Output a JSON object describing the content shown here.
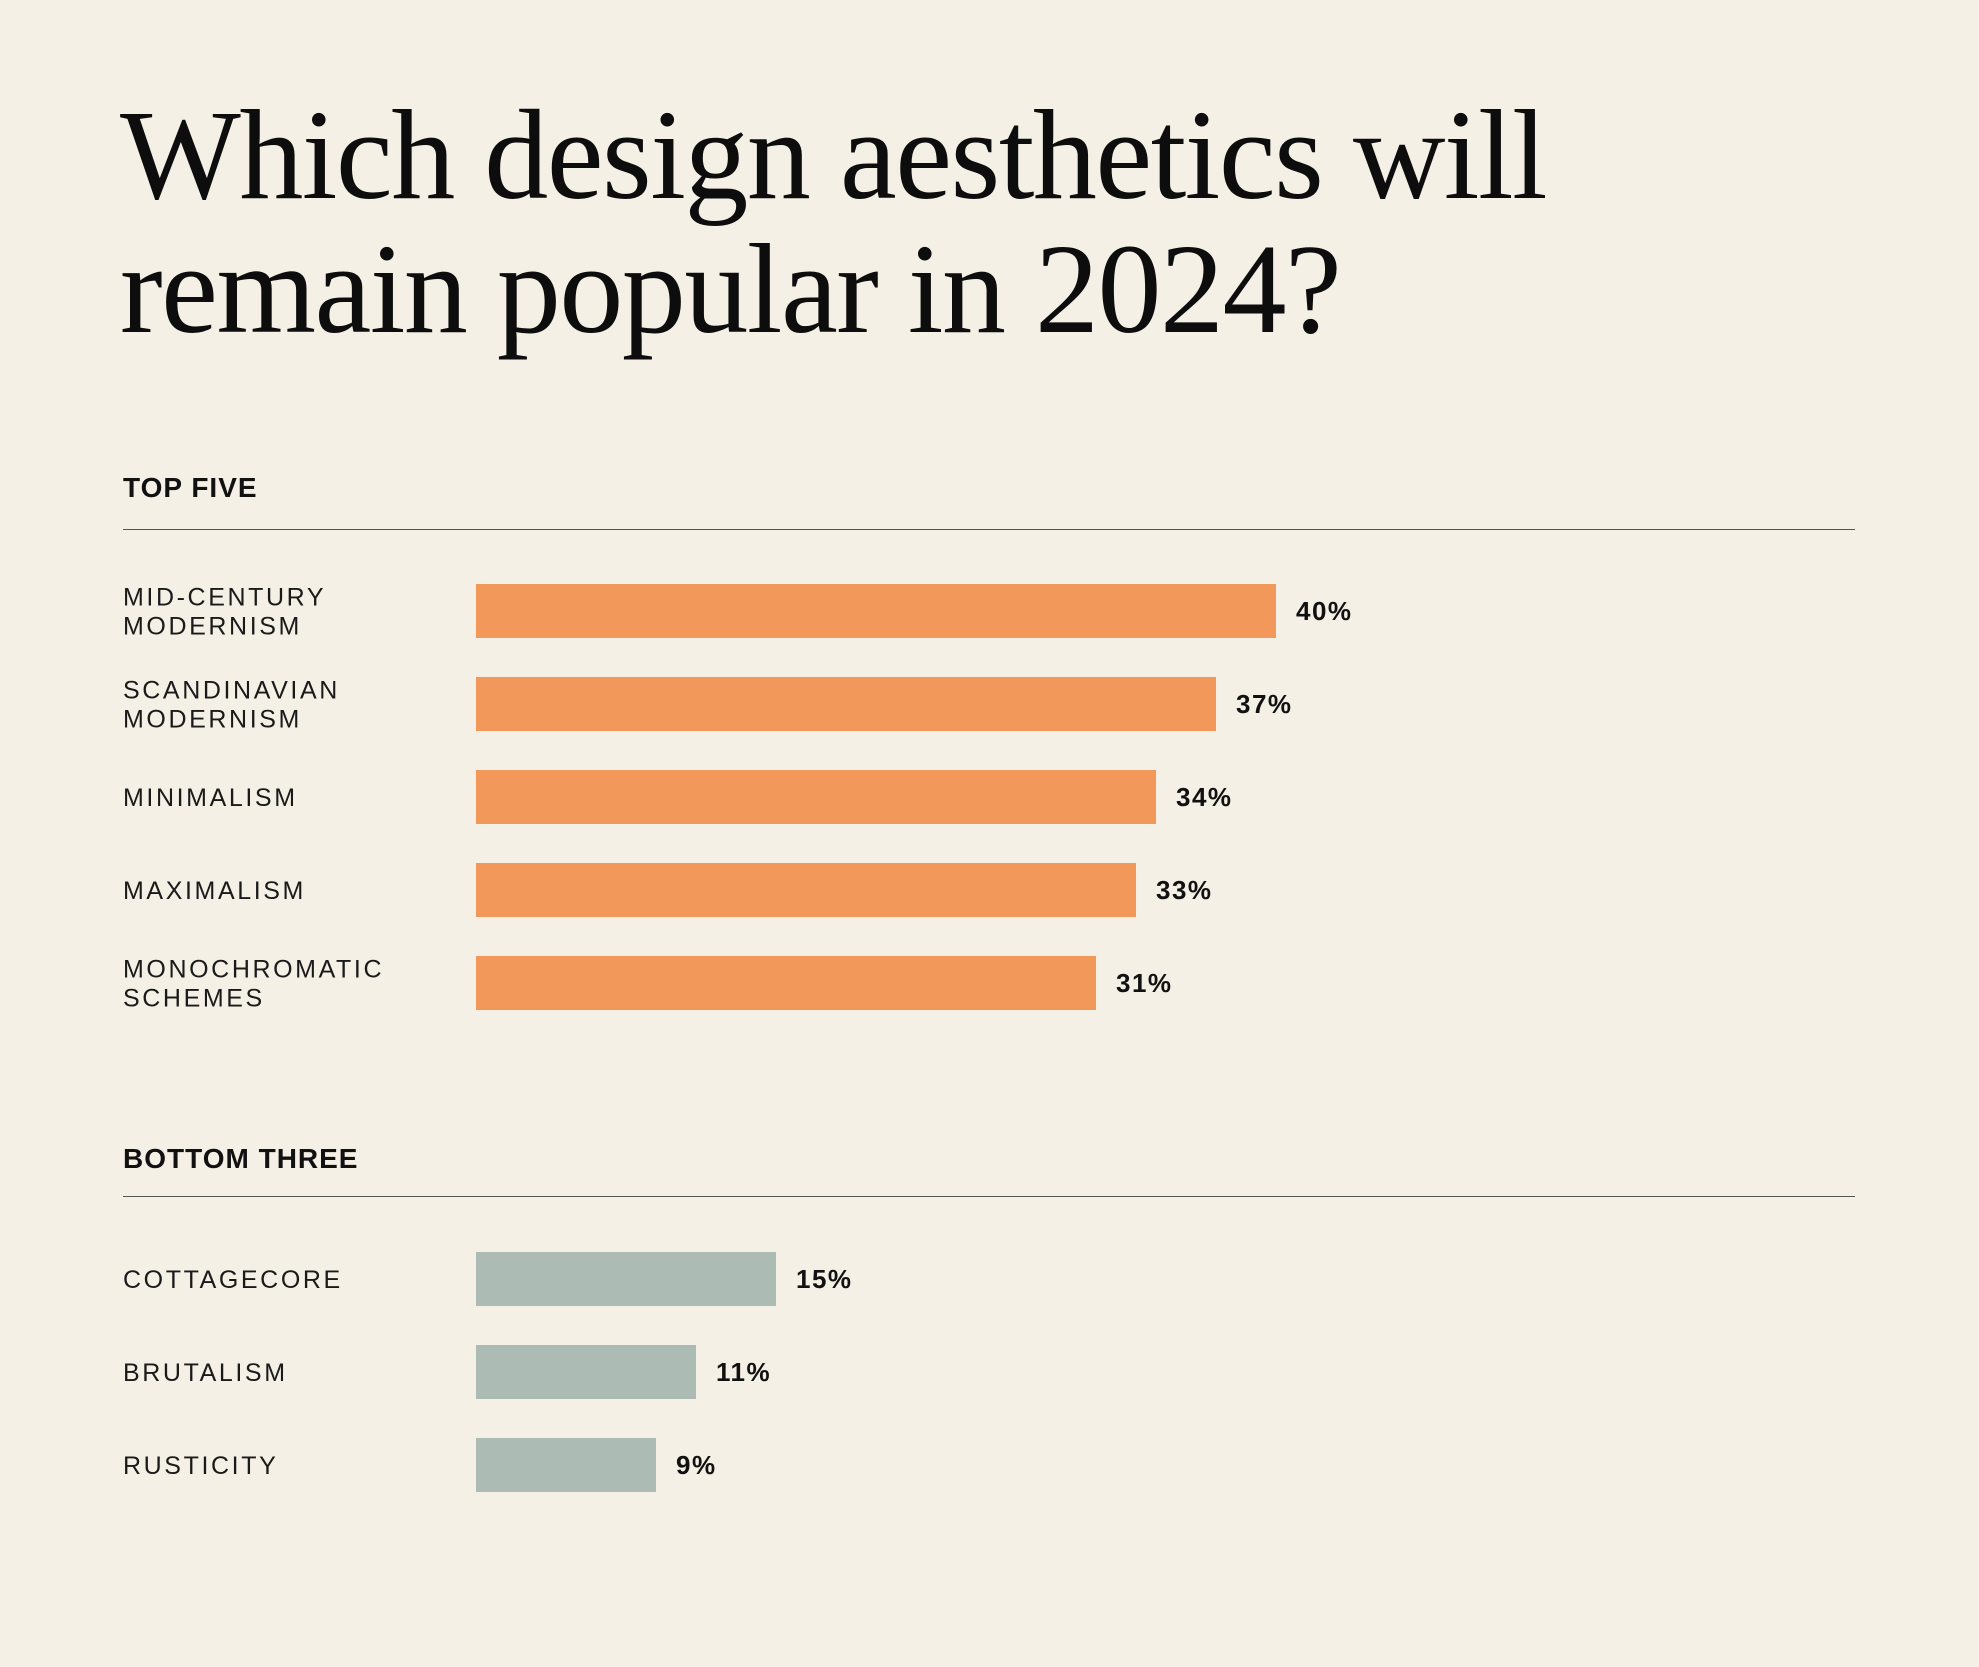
{
  "title": {
    "line1": "Which design aesthetics will",
    "line2": "remain popular in 2024?"
  },
  "chart_data": [
    {
      "type": "bar",
      "orientation": "horizontal",
      "section_label": "TOP FIVE",
      "categories": [
        [
          "MID-CENTURY",
          "MODERNISM"
        ],
        [
          "SCANDINAVIAN",
          "MODERNISM"
        ],
        [
          "MINIMALISM"
        ],
        [
          "MAXIMALISM"
        ],
        [
          "MONOCHROMATIC",
          "SCHEMES"
        ]
      ],
      "values": [
        40,
        37,
        34,
        33,
        31
      ],
      "value_labels": [
        "40%",
        "37%",
        "34%",
        "33%",
        "31%"
      ],
      "color": "#f2985a",
      "grid": false
    },
    {
      "type": "bar",
      "orientation": "horizontal",
      "section_label": "BOTTOM THREE",
      "categories": [
        [
          "COTTAGECORE"
        ],
        [
          "BRUTALISM"
        ],
        [
          "RUSTICITY"
        ]
      ],
      "values": [
        15,
        11,
        9
      ],
      "value_labels": [
        "15%",
        "11%",
        "9%"
      ],
      "color": "#adbbb5",
      "grid": false
    }
  ]
}
